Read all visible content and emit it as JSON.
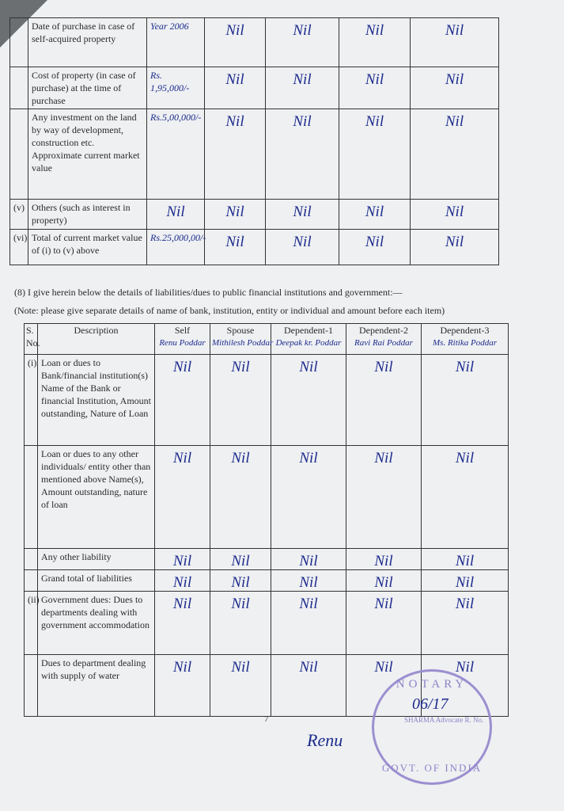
{
  "property_table": {
    "rows": [
      {
        "sno": "",
        "desc": "Date of purchase in case of self-acquired property",
        "values": [
          "Year 2006",
          "Nil",
          "Nil",
          "Nil",
          "Nil"
        ]
      },
      {
        "sno": "",
        "desc": "Cost of property (in case of purchase) at the time of purchase",
        "values": [
          "Rs. 1,95,000/-",
          "Nil",
          "Nil",
          "Nil",
          "Nil"
        ]
      },
      {
        "sno": "",
        "desc": "Any investment on the land by way of development, construction etc. Approximate current market value",
        "values": [
          "Rs.5,00,000/-",
          "Nil",
          "Nil",
          "Nil",
          "Nil"
        ]
      },
      {
        "sno": "(v)",
        "desc": "Others (such as interest in property)",
        "values": [
          "Nil",
          "Nil",
          "Nil",
          "Nil",
          "Nil"
        ]
      },
      {
        "sno": "(vi)",
        "desc": "Total of current market value of (i) to (v) above",
        "values": [
          "Rs.25,000,00/-",
          "Nil",
          "Nil",
          "Nil",
          "Nil"
        ]
      }
    ]
  },
  "section8": {
    "heading": "(8)   I give herein below the details of liabilities/dues to public financial institutions and government:—",
    "note": "(Note: please give separate details of name of bank, institution, entity or individual and amount before each item)"
  },
  "liabilities_table": {
    "headers": {
      "sno": "S. No.",
      "desc": "Description",
      "cols": [
        "Self",
        "Spouse",
        "Dependent-1",
        "Dependent-2",
        "Dependent-3"
      ]
    },
    "names": [
      "Renu Poddar",
      "Mithilesh Poddar",
      "Deepak kr. Poddar",
      "Ravi Rai Poddar",
      "Ms. Ritika Poddar"
    ],
    "rows": [
      {
        "sno": "(i)",
        "desc": "Loan or dues to Bank/financial institution(s) Name of the Bank or financial Institution, Amount outstanding, Nature of Loan",
        "values": [
          "Nil",
          "Nil",
          "Nil",
          "Nil",
          "Nil"
        ]
      },
      {
        "sno": "",
        "desc": "Loan or dues to any other individuals/ entity other than mentioned above Name(s), Amount outstanding, nature of loan",
        "values": [
          "Nil",
          "Nil",
          "Nil",
          "Nil",
          "Nil"
        ]
      },
      {
        "sno": "",
        "desc": "Any other liability",
        "values": [
          "Nil",
          "Nil",
          "Nil",
          "Nil",
          "Nil"
        ]
      },
      {
        "sno": "",
        "desc": "Grand total of liabilities",
        "values": [
          "Nil",
          "Nil",
          "Nil",
          "Nil",
          "Nil"
        ]
      },
      {
        "sno": "(ii)",
        "desc": "Government dues: Dues to departments dealing with government accommodation",
        "values": [
          "Nil",
          "Nil",
          "Nil",
          "Nil",
          "Nil"
        ]
      },
      {
        "sno": "",
        "desc": "Dues to department dealing with supply of water",
        "values": [
          "Nil",
          "Nil",
          "Nil",
          "Nil",
          "Nil"
        ]
      }
    ]
  },
  "footer": {
    "page_number": "7",
    "signature": "Renu",
    "stamp": {
      "top": "NOTARY",
      "bottom": "GOVT. OF INDIA",
      "middle": "SHARMA Advocate R. No.",
      "date": "06/17"
    }
  }
}
